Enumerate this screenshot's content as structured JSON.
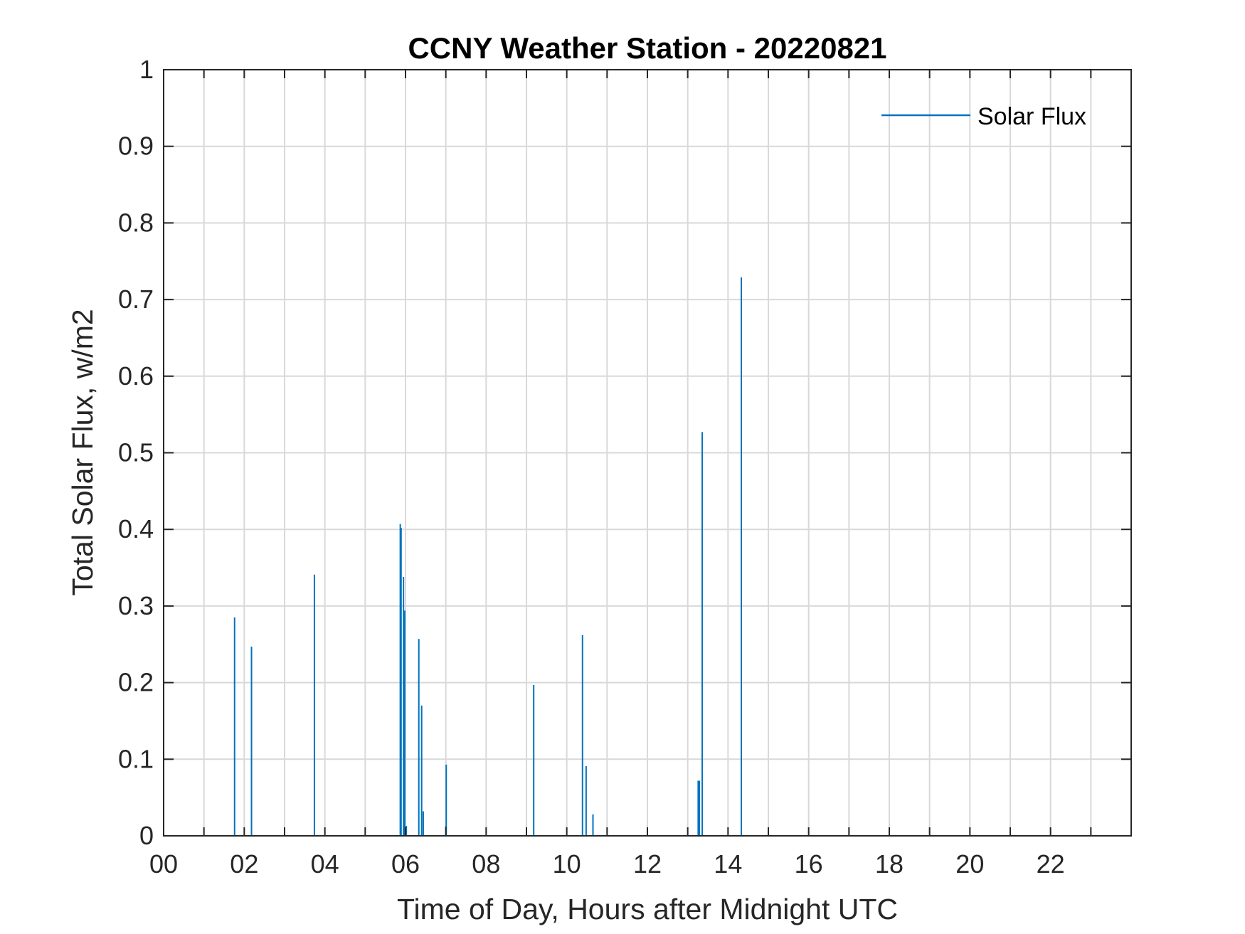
{
  "chart_data": {
    "type": "line",
    "title": "CCNY Weather Station - 20220821",
    "xlabel": "Time of Day, Hours after Midnight UTC",
    "ylabel": "Total Solar Flux, w/m2",
    "xlim": [
      0,
      24
    ],
    "ylim": [
      0,
      1
    ],
    "xticks": [
      0,
      2,
      4,
      6,
      8,
      10,
      12,
      14,
      16,
      18,
      20,
      22
    ],
    "xtick_labels": [
      "00",
      "02",
      "04",
      "06",
      "08",
      "10",
      "12",
      "14",
      "16",
      "18",
      "20",
      "22"
    ],
    "yticks": [
      0,
      0.1,
      0.2,
      0.3,
      0.4,
      0.5,
      0.6,
      0.7,
      0.8,
      0.9,
      1
    ],
    "ytick_labels": [
      "0",
      "0.1",
      "0.2",
      "0.3",
      "0.4",
      "0.5",
      "0.6",
      "0.7",
      "0.8",
      "0.9",
      "1"
    ],
    "grid": true,
    "legend_position": "top-right",
    "color": "#0072BD",
    "series": [
      {
        "name": "Solar Flux",
        "x": [
          1.76,
          2.18,
          3.74,
          5.87,
          5.89,
          5.95,
          5.98,
          6.02,
          6.33,
          6.4,
          6.44,
          7.0,
          7.01,
          9.18,
          10.39,
          10.48,
          10.65,
          13.26,
          13.29,
          13.36,
          14.33
        ],
        "y": [
          0.285,
          0.247,
          0.341,
          0.407,
          0.402,
          0.338,
          0.294,
          0.013,
          0.257,
          0.17,
          0.032,
          0.013,
          0.093,
          0.197,
          0.262,
          0.091,
          0.028,
          0.072,
          0.072,
          0.527,
          0.729
        ]
      }
    ]
  }
}
